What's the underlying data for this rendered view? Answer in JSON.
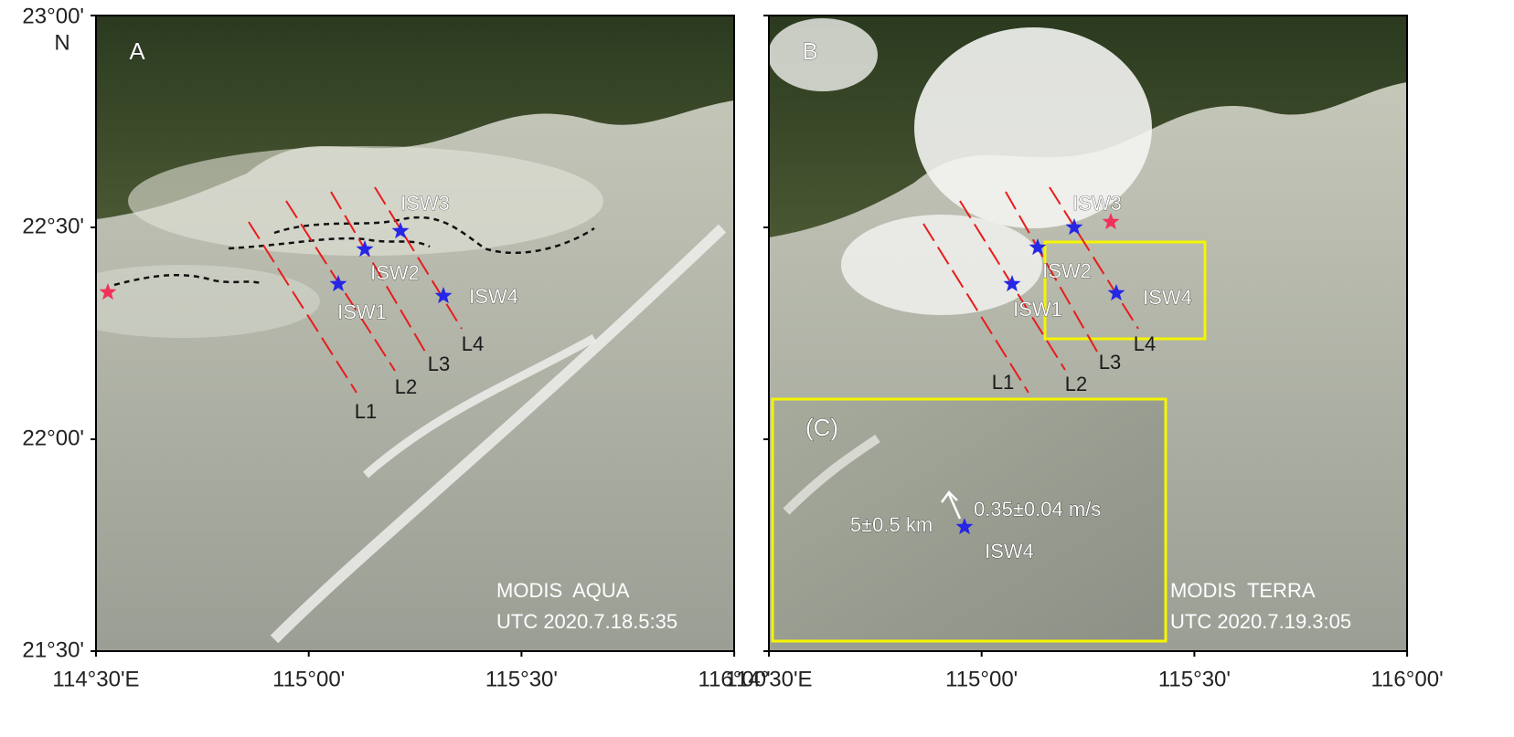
{
  "y_axis": {
    "labels": [
      "23°00'",
      "22°30'",
      "22°00'",
      "21°30'"
    ],
    "hemisphere": "N"
  },
  "x_axis": {
    "labels": [
      "114°30'E",
      "115°00'",
      "115°30'",
      "116°00'"
    ]
  },
  "panels": [
    {
      "label": "A",
      "sensor": "MODIS  AQUA",
      "time": "UTC 2020.7.18.5:35",
      "waves": [
        "ISW1",
        "ISW2",
        "ISW3",
        "ISW4"
      ],
      "lines": [
        "L1",
        "L2",
        "L3",
        "L4"
      ]
    },
    {
      "label": "B",
      "sensor": "MODIS  TERRA",
      "time": "UTC 2020.7.19.3:05",
      "waves": [
        "ISW1",
        "ISW2",
        "ISW3",
        "ISW4"
      ],
      "lines": [
        "L1",
        "L2",
        "L3",
        "L4"
      ],
      "inset": {
        "label": "(C)",
        "distance": "5±0.5 km",
        "speed": "0.35±0.04 m/s",
        "wave": "ISW4"
      }
    }
  ]
}
